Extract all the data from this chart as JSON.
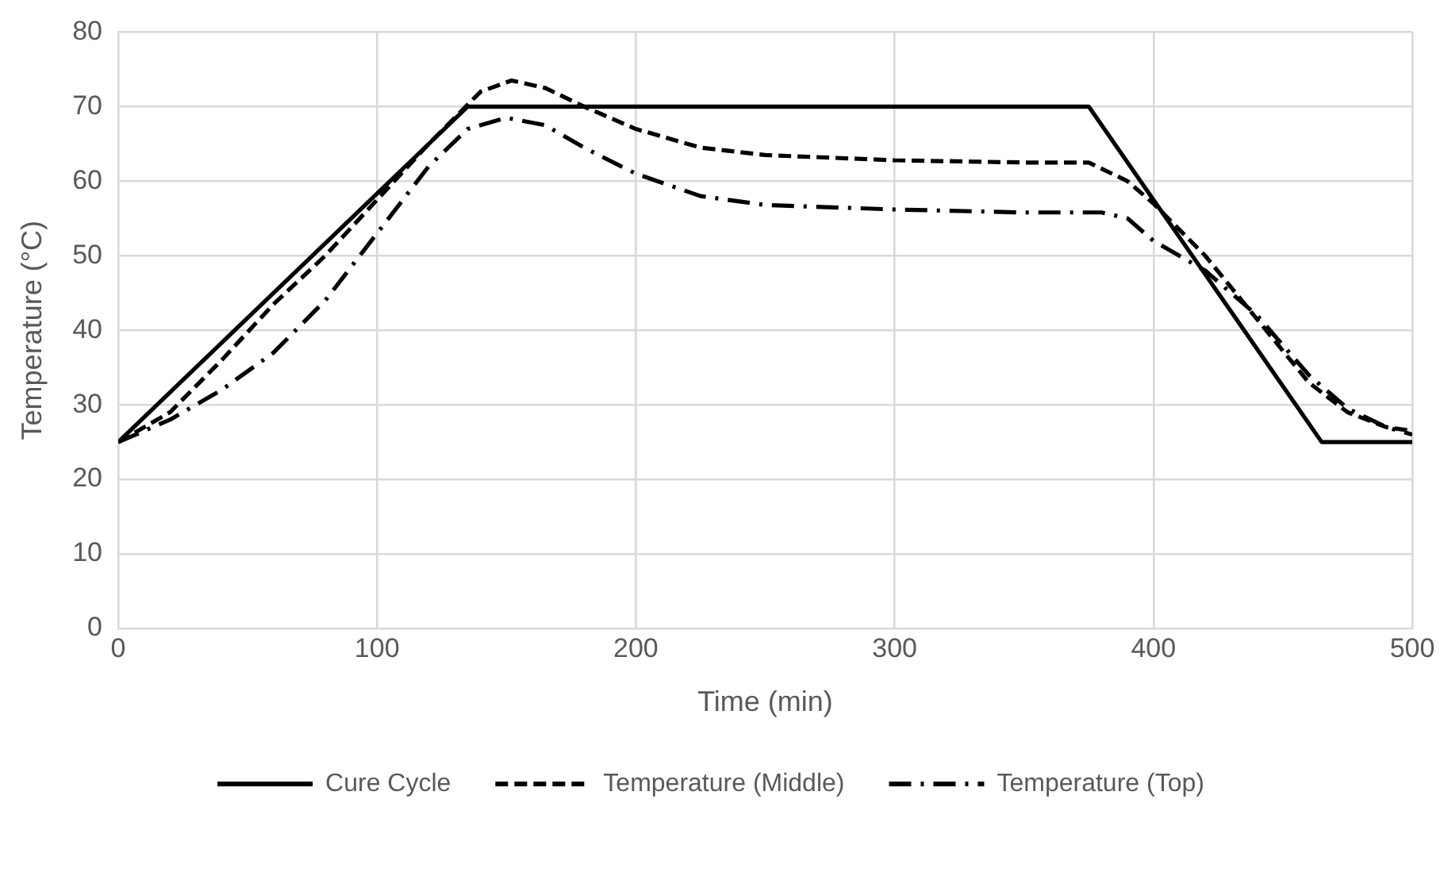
{
  "chart_data": {
    "type": "line",
    "xlabel": "Time (min)",
    "ylabel": "Temperature (°C)",
    "xlim": [
      0,
      500
    ],
    "xticks": [
      0,
      100,
      200,
      300,
      400,
      500
    ],
    "ylim": [
      0,
      80
    ],
    "yticks": [
      0,
      10,
      20,
      30,
      40,
      50,
      60,
      70,
      80
    ],
    "grid": true,
    "legend": "bottom",
    "marker": "none",
    "series": [
      {
        "name": "Cure Cycle",
        "color": "#000000",
        "line_style": "solid",
        "x": [
          0,
          135,
          375,
          465,
          500
        ],
        "values": [
          25,
          70,
          70,
          25,
          25
        ]
      },
      {
        "name": "Temperature (Middle)",
        "color": "#000000",
        "line_style": "dashed",
        "x": [
          0,
          20,
          40,
          60,
          80,
          100,
          120,
          140,
          152,
          165,
          180,
          200,
          225,
          250,
          300,
          350,
          375,
          390,
          400,
          420,
          440,
          460,
          475,
          490,
          500
        ],
        "values": [
          25,
          29,
          36,
          43.5,
          50,
          57.5,
          65,
          72,
          73.5,
          72.5,
          70,
          67,
          64.5,
          63.5,
          62.8,
          62.5,
          62.5,
          60,
          57,
          50,
          41.5,
          33,
          29,
          27,
          26.5
        ]
      },
      {
        "name": "Temperature (Top)",
        "color": "#000000",
        "line_style": "dashdot",
        "x": [
          0,
          20,
          40,
          60,
          80,
          100,
          120,
          135,
          150,
          165,
          180,
          200,
          225,
          250,
          300,
          350,
          380,
          390,
          400,
          420,
          440,
          460,
          475,
          490,
          500
        ],
        "values": [
          25,
          28,
          32,
          37,
          44,
          53,
          62,
          67,
          68.5,
          67.5,
          64.5,
          61,
          58,
          56.8,
          56.2,
          55.8,
          55.8,
          55,
          52,
          48,
          42,
          34,
          29.5,
          27,
          26
        ]
      }
    ]
  }
}
